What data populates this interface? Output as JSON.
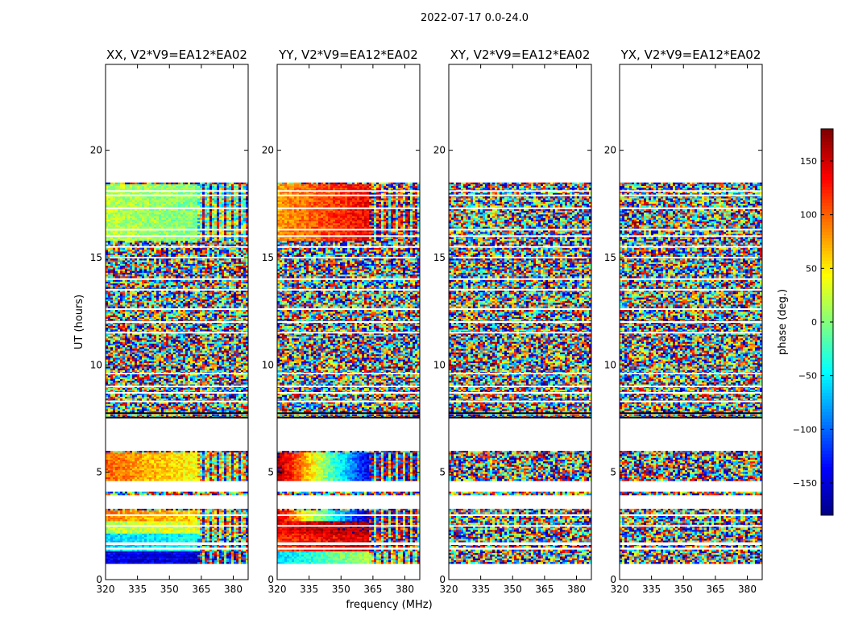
{
  "chart_data": {
    "type": "heatmap",
    "suptitle": "2022-07-17 0.0-24.0",
    "xlabel": "frequency (MHz)",
    "ylabel": "UT (hours)",
    "xlim": [
      320,
      387
    ],
    "ylim": [
      0,
      24
    ],
    "xticks": [
      320,
      335,
      350,
      365,
      380
    ],
    "yticks": [
      0,
      5,
      10,
      15,
      20
    ],
    "colorbar": {
      "label": "phase (deg.)",
      "range": [
        -180,
        180
      ],
      "ticks": [
        150,
        100,
        50,
        0,
        -50,
        -100,
        -150
      ],
      "tick_labels": [
        "150",
        "100",
        "50",
        "0",
        "−50",
        "−100",
        "−150"
      ],
      "colormap": "jet"
    },
    "data_rows_hours": [
      [
        0.8,
        1.4
      ],
      [
        1.5,
        3.3
      ],
      [
        4.0,
        4.1
      ],
      [
        4.6,
        6.0
      ],
      [
        7.6,
        7.7
      ],
      [
        7.8,
        18.5
      ]
    ],
    "gaps_hours": [
      1.45,
      1.65,
      1.7,
      2.5,
      3.0,
      8.3,
      8.7,
      9.0,
      9.6,
      11.5,
      12.0,
      12.6,
      13.5,
      14.0,
      15.0,
      15.5,
      16.0,
      16.3,
      17.3,
      17.9,
      18.1
    ],
    "panels": [
      {
        "title": "XX, V2*V9=EA12*EA02",
        "coherent": true,
        "bands": [
          {
            "t0": 0.8,
            "t1": 1.4,
            "phase_low": -145,
            "phase_high": -150
          },
          {
            "t0": 1.4,
            "t1": 2.2,
            "phase_low": -60,
            "phase_high": -40
          },
          {
            "t0": 2.2,
            "t1": 2.8,
            "phase_low": 20,
            "phase_high": 40
          },
          {
            "t0": 2.8,
            "t1": 3.3,
            "phase_low": 90,
            "phase_high": 60
          },
          {
            "t0": 4.6,
            "t1": 6.0,
            "phase_low": 100,
            "phase_high": 40
          },
          {
            "t0": 15.8,
            "t1": 18.5,
            "phase_low": 20,
            "phase_high": 0
          }
        ]
      },
      {
        "title": "YY, V2*V9=EA12*EA02",
        "coherent": true,
        "bands": [
          {
            "t0": 0.8,
            "t1": 1.4,
            "phase_low": -60,
            "phase_high": 20
          },
          {
            "t0": 1.4,
            "t1": 2.2,
            "phase_low": 120,
            "phase_high": 150
          },
          {
            "t0": 2.2,
            "t1": 2.8,
            "phase_low": 140,
            "phase_high": 170
          },
          {
            "t0": 2.8,
            "t1": 3.3,
            "phase_low": 150,
            "phase_high": -170
          },
          {
            "t0": 4.6,
            "t1": 6.0,
            "phase_low": 170,
            "phase_high": -150
          },
          {
            "t0": 15.8,
            "t1": 18.5,
            "phase_low": 80,
            "phase_high": 140
          }
        ]
      },
      {
        "title": "XY, V2*V9=EA12*EA02",
        "coherent": false,
        "bands": []
      },
      {
        "title": "YX, V2*V9=EA12*EA02",
        "coherent": false,
        "bands": []
      }
    ]
  }
}
